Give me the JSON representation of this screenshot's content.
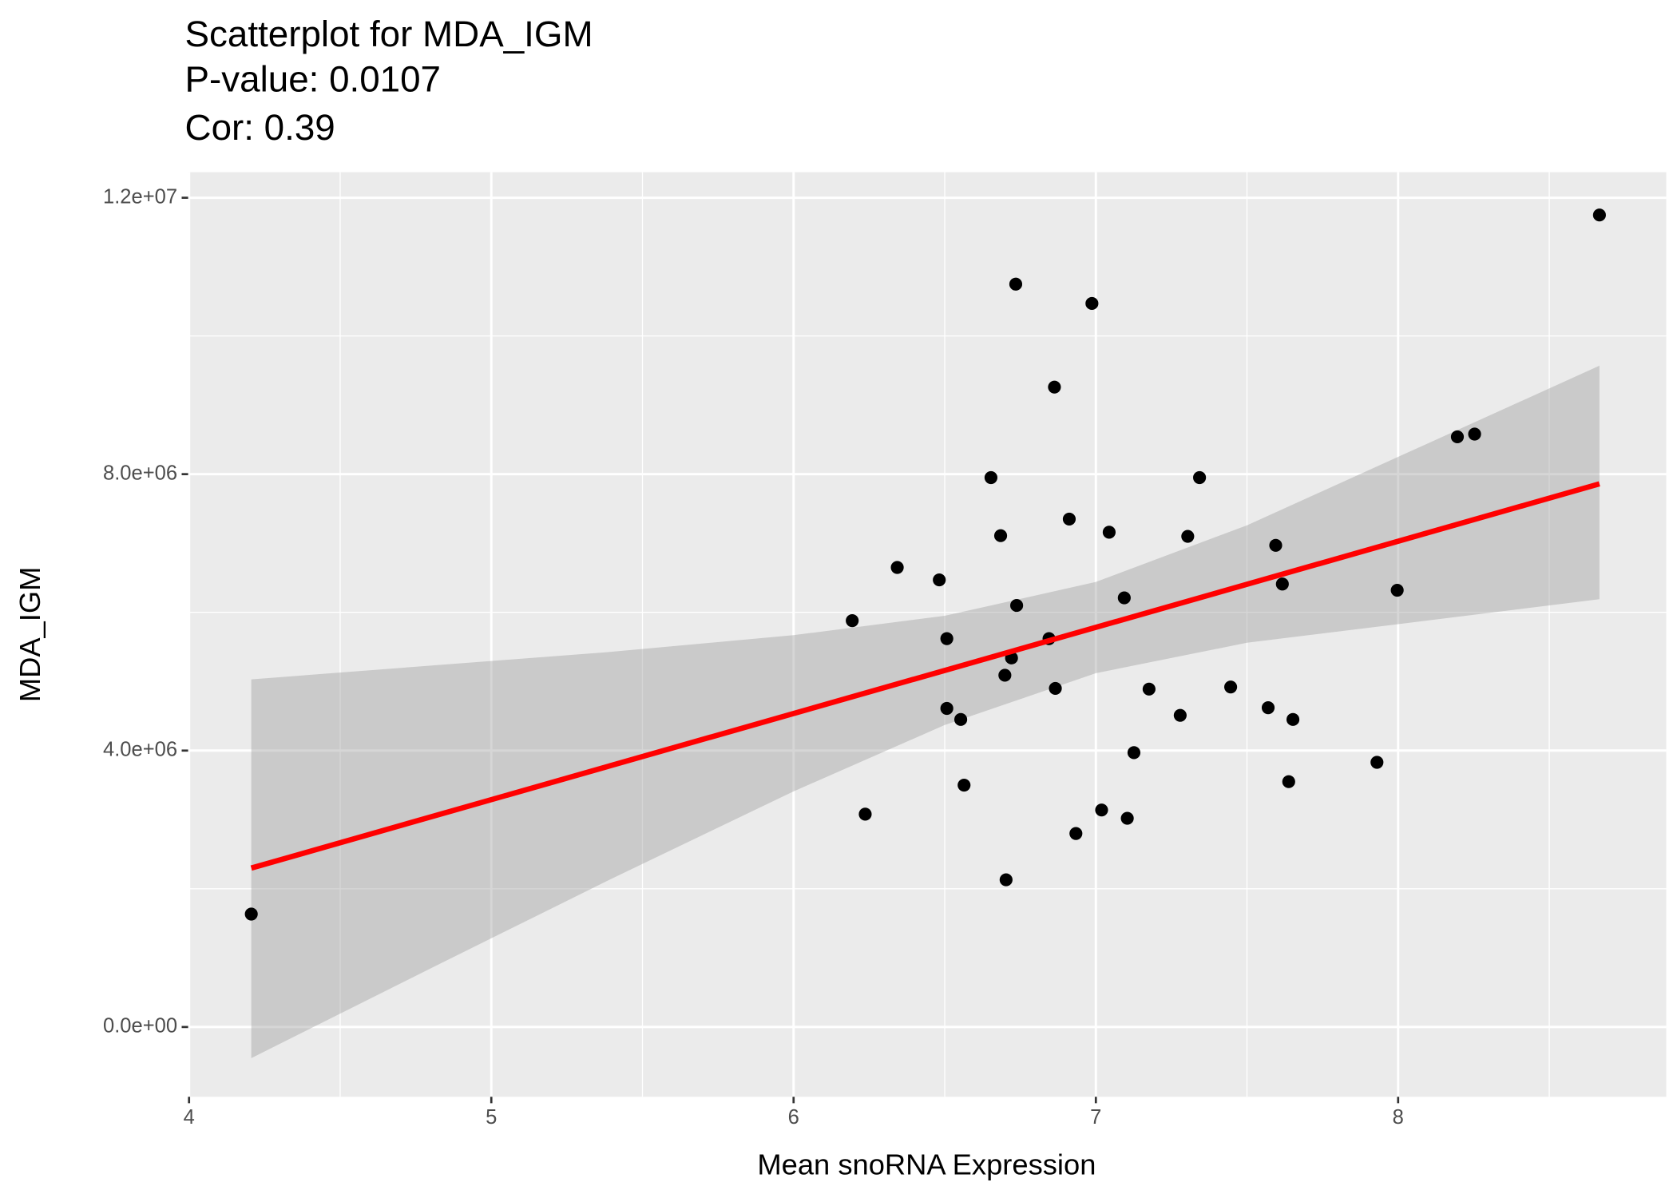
{
  "chart_data": {
    "type": "scatter",
    "title": [
      "Scatterplot for MDA_IGM",
      "P-value: 0.0107",
      "Cor: 0.39"
    ],
    "x_label": "Mean snoRNA Expression",
    "y_label": "MDA_IGM",
    "xlim": [
      3.997,
      8.887
    ],
    "ylim": [
      -1010000,
      12370000
    ],
    "xticks": [
      4,
      5,
      6,
      7,
      8
    ],
    "yticks": [
      {
        "value": 0,
        "label": "0.0e+00"
      },
      {
        "value": 4000000,
        "label": "4.0e+06"
      },
      {
        "value": 8000000,
        "label": "8.0e+06"
      },
      {
        "value": 12000000,
        "label": "1.2e+07"
      }
    ],
    "x_minor_grid": [
      4.5,
      5.5,
      6.5,
      7.5,
      8.5
    ],
    "y_minor_grid": [
      2000000,
      6000000,
      10000000
    ],
    "grid": true,
    "series": [
      {
        "color": "#000000",
        "x": [
          4.206,
          6.237,
          6.194,
          6.343,
          6.482,
          6.507,
          6.507,
          6.553,
          6.564,
          6.653,
          6.685,
          6.699,
          6.703,
          6.721,
          6.735,
          6.738,
          6.845,
          6.863,
          6.866,
          6.912,
          6.934,
          6.987,
          7.019,
          7.044,
          7.094,
          7.104,
          7.126,
          7.176,
          7.279,
          7.304,
          7.343,
          7.446,
          7.57,
          7.595,
          7.617,
          7.638,
          7.652,
          7.93,
          7.997,
          8.196,
          8.253,
          8.666
        ],
        "values": [
          1634000,
          3080000,
          5880000,
          6650000,
          6470000,
          5620000,
          4610000,
          4450000,
          3500000,
          7950000,
          7110000,
          5090000,
          2130000,
          5340000,
          10750000,
          6100000,
          5620000,
          9260000,
          4900000,
          7350000,
          2800000,
          10470000,
          3140000,
          7160000,
          6210000,
          3020000,
          3970000,
          4890000,
          4510000,
          7100000,
          7950000,
          4920000,
          4620000,
          6970000,
          6410000,
          3550000,
          4450000,
          3830000,
          6320000,
          8540000,
          8580000,
          11750000
        ]
      }
    ],
    "fit": {
      "color": "#ff0000",
      "x": [
        4.206,
        8.666
      ],
      "values": [
        2300000,
        7860000
      ]
    },
    "ribbon": {
      "color": "#999999",
      "x": [
        4.206,
        4.8,
        5.4,
        6.0,
        6.5,
        7.0,
        7.5,
        8.0,
        8.666
      ],
      "upper": [
        5030000,
        5230000,
        5430000,
        5670000,
        5950000,
        6440000,
        7260000,
        8250000,
        9570000
      ],
      "lower": [
        -450000,
        850000,
        2150000,
        3410000,
        4370000,
        5120000,
        5560000,
        5830000,
        6190000
      ]
    }
  }
}
